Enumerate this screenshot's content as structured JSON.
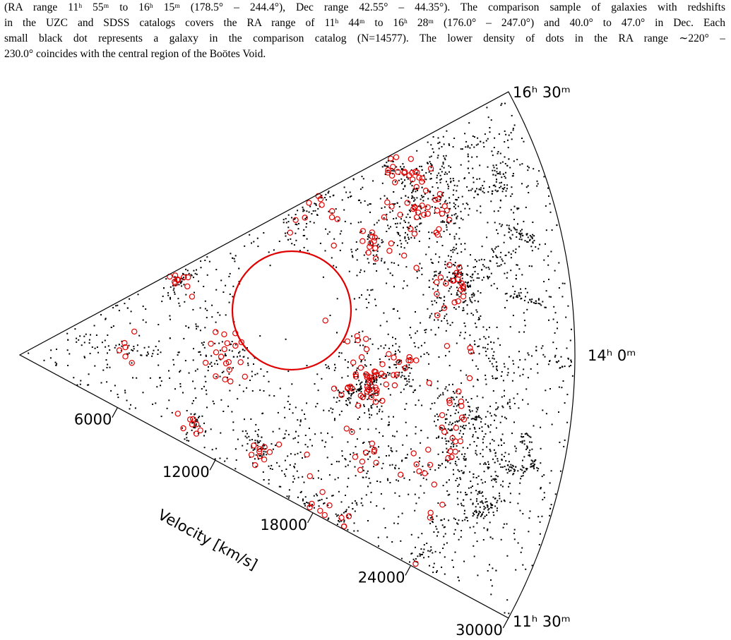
{
  "caption": {
    "lines": [
      "(RA range 11ʰ 55ᵐ to 16ʰ 15ᵐ (178.5° – 244.4°), Dec range 42.55° – 44.35°). The comparison sample of galaxies with redshifts",
      "in the UZC and SDSS catalogs covers the RA range of 11ʰ 44ᵐ to 16ʰ 28ᵐ (176.0° – 247.0°) and 40.0° to 47.0° in Dec. Each",
      "small black dot represents a galaxy in the comparison catalog (N=14577). The lower density of dots in the RA range ∼220° –",
      "230.0° coincides with the central region of the Boötes Void."
    ]
  },
  "figure": {
    "ra_labels": [
      "16ʰ 30ᵐ",
      "14ʰ 0ᵐ",
      "11ʰ 30ᵐ"
    ],
    "velocity_axis": {
      "title": "Velocity [km/s]",
      "lim": [
        0,
        30000
      ],
      "ticks": [
        6000,
        12000,
        18000,
        24000,
        30000
      ]
    }
  }
}
